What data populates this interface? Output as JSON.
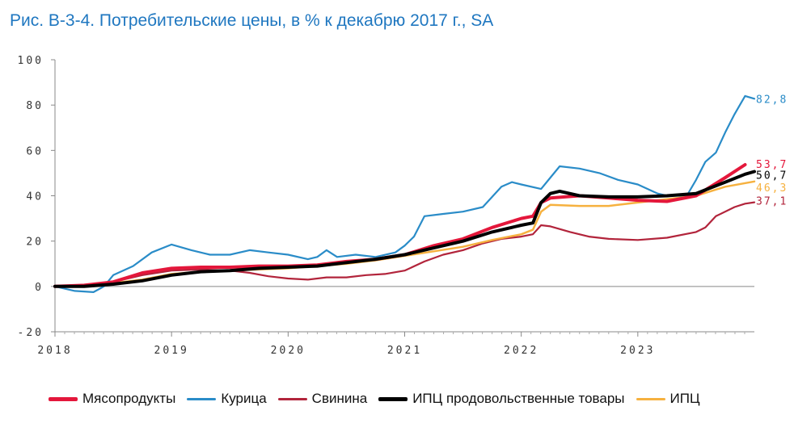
{
  "title": "Рис. В-3-4. Потребительские цены, в % к декабрю 2017 г., SA",
  "chart_data": {
    "type": "line",
    "title": "Рис. В-3-4. Потребительские цены, в % к декабрю 2017 г., SA",
    "xlabel": "",
    "ylabel": "",
    "xlim": [
      2018.0,
      2024.0
    ],
    "ylim": [
      -20,
      100
    ],
    "y_ticks": [
      100,
      80,
      60,
      40,
      20,
      0,
      -20
    ],
    "x_ticks": [
      2018,
      2019,
      2020,
      2021,
      2022,
      2023
    ],
    "x_tick_labels": [
      "2018",
      "2019",
      "2020",
      "2021",
      "2022",
      "2023"
    ],
    "grid": false,
    "legend_position": "bottom",
    "series": [
      {
        "name": "Мясопродукты",
        "color": "#e4173b",
        "end_label": "53,7",
        "points": [
          [
            2018.0,
            0
          ],
          [
            2018.25,
            0.5
          ],
          [
            2018.5,
            2
          ],
          [
            2018.75,
            6
          ],
          [
            2019.0,
            8
          ],
          [
            2019.25,
            8.5
          ],
          [
            2019.5,
            8.5
          ],
          [
            2019.75,
            9
          ],
          [
            2020.0,
            9
          ],
          [
            2020.25,
            9.5
          ],
          [
            2020.5,
            11
          ],
          [
            2020.75,
            12
          ],
          [
            2021.0,
            14
          ],
          [
            2021.25,
            18
          ],
          [
            2021.5,
            21
          ],
          [
            2021.75,
            26
          ],
          [
            2022.0,
            30
          ],
          [
            2022.1,
            31
          ],
          [
            2022.17,
            37
          ],
          [
            2022.25,
            39
          ],
          [
            2022.5,
            40
          ],
          [
            2022.75,
            39
          ],
          [
            2023.0,
            38
          ],
          [
            2023.25,
            37.5
          ],
          [
            2023.5,
            40
          ],
          [
            2023.75,
            48
          ],
          [
            2023.92,
            53.7
          ]
        ]
      },
      {
        "name": "Курица",
        "color": "#2a8cc8",
        "end_label": "82,8",
        "points": [
          [
            2018.0,
            0
          ],
          [
            2018.17,
            -2
          ],
          [
            2018.33,
            -2.5
          ],
          [
            2018.42,
            0
          ],
          [
            2018.5,
            5
          ],
          [
            2018.67,
            9
          ],
          [
            2018.83,
            15
          ],
          [
            2019.0,
            18.5
          ],
          [
            2019.17,
            16
          ],
          [
            2019.33,
            14
          ],
          [
            2019.5,
            14
          ],
          [
            2019.67,
            16
          ],
          [
            2019.83,
            15
          ],
          [
            2020.0,
            14
          ],
          [
            2020.17,
            12
          ],
          [
            2020.25,
            13
          ],
          [
            2020.33,
            16
          ],
          [
            2020.42,
            13
          ],
          [
            2020.58,
            14
          ],
          [
            2020.75,
            13
          ],
          [
            2020.92,
            15
          ],
          [
            2021.0,
            18
          ],
          [
            2021.08,
            22
          ],
          [
            2021.17,
            31
          ],
          [
            2021.33,
            32
          ],
          [
            2021.5,
            33
          ],
          [
            2021.67,
            35
          ],
          [
            2021.83,
            44
          ],
          [
            2021.92,
            46
          ],
          [
            2022.0,
            45
          ],
          [
            2022.17,
            43
          ],
          [
            2022.25,
            48
          ],
          [
            2022.33,
            53
          ],
          [
            2022.5,
            52
          ],
          [
            2022.67,
            50
          ],
          [
            2022.83,
            47
          ],
          [
            2023.0,
            45
          ],
          [
            2023.17,
            41
          ],
          [
            2023.25,
            40
          ],
          [
            2023.42,
            40
          ],
          [
            2023.5,
            47
          ],
          [
            2023.58,
            55
          ],
          [
            2023.67,
            59
          ],
          [
            2023.75,
            68
          ],
          [
            2023.83,
            76
          ],
          [
            2023.92,
            84
          ],
          [
            2024.0,
            82.8
          ]
        ]
      },
      {
        "name": "Свинина",
        "color": "#b2243b",
        "end_label": "37,1",
        "points": [
          [
            2018.0,
            0
          ],
          [
            2018.25,
            0
          ],
          [
            2018.5,
            2
          ],
          [
            2018.75,
            5
          ],
          [
            2019.0,
            7
          ],
          [
            2019.25,
            7.5
          ],
          [
            2019.5,
            7
          ],
          [
            2019.67,
            6
          ],
          [
            2019.83,
            4.5
          ],
          [
            2020.0,
            3.5
          ],
          [
            2020.17,
            3
          ],
          [
            2020.33,
            4
          ],
          [
            2020.5,
            4
          ],
          [
            2020.67,
            5
          ],
          [
            2020.83,
            5.5
          ],
          [
            2021.0,
            7
          ],
          [
            2021.17,
            11
          ],
          [
            2021.33,
            14
          ],
          [
            2021.5,
            16
          ],
          [
            2021.67,
            19
          ],
          [
            2021.83,
            21
          ],
          [
            2022.0,
            22
          ],
          [
            2022.1,
            23
          ],
          [
            2022.17,
            27
          ],
          [
            2022.25,
            26.5
          ],
          [
            2022.42,
            24
          ],
          [
            2022.58,
            22
          ],
          [
            2022.75,
            21
          ],
          [
            2023.0,
            20.5
          ],
          [
            2023.25,
            21.5
          ],
          [
            2023.5,
            24
          ],
          [
            2023.58,
            26
          ],
          [
            2023.67,
            31
          ],
          [
            2023.83,
            35
          ],
          [
            2023.92,
            36.5
          ],
          [
            2024.0,
            37.1
          ]
        ]
      },
      {
        "name": "ИПЦ продовольственные товары",
        "color": "#000000",
        "end_label": "50,7",
        "points": [
          [
            2018.0,
            0
          ],
          [
            2018.25,
            0
          ],
          [
            2018.5,
            1
          ],
          [
            2018.75,
            2.5
          ],
          [
            2019.0,
            5
          ],
          [
            2019.25,
            6.5
          ],
          [
            2019.5,
            7
          ],
          [
            2019.75,
            8
          ],
          [
            2020.0,
            8.5
          ],
          [
            2020.25,
            9
          ],
          [
            2020.5,
            10.5
          ],
          [
            2020.75,
            12
          ],
          [
            2021.0,
            14
          ],
          [
            2021.25,
            17
          ],
          [
            2021.5,
            20
          ],
          [
            2021.75,
            24
          ],
          [
            2022.0,
            27
          ],
          [
            2022.1,
            28
          ],
          [
            2022.17,
            37
          ],
          [
            2022.25,
            41
          ],
          [
            2022.33,
            42
          ],
          [
            2022.5,
            40
          ],
          [
            2022.75,
            39.5
          ],
          [
            2023.0,
            39.5
          ],
          [
            2023.25,
            40
          ],
          [
            2023.5,
            41
          ],
          [
            2023.75,
            46
          ],
          [
            2023.92,
            49.5
          ],
          [
            2024.0,
            50.7
          ]
        ]
      },
      {
        "name": "ИПЦ",
        "color": "#f6b13f",
        "end_label": "46,3",
        "points": [
          [
            2018.0,
            0
          ],
          [
            2018.25,
            0.5
          ],
          [
            2018.5,
            1.5
          ],
          [
            2018.75,
            3
          ],
          [
            2019.0,
            5.5
          ],
          [
            2019.25,
            6.5
          ],
          [
            2019.5,
            7
          ],
          [
            2019.75,
            7.5
          ],
          [
            2020.0,
            8
          ],
          [
            2020.25,
            9
          ],
          [
            2020.5,
            10
          ],
          [
            2020.75,
            11.5
          ],
          [
            2021.0,
            13.5
          ],
          [
            2021.25,
            15.5
          ],
          [
            2021.5,
            17.5
          ],
          [
            2021.75,
            20.5
          ],
          [
            2022.0,
            23
          ],
          [
            2022.1,
            25
          ],
          [
            2022.17,
            33
          ],
          [
            2022.25,
            36
          ],
          [
            2022.5,
            35.5
          ],
          [
            2022.75,
            35.5
          ],
          [
            2023.0,
            37
          ],
          [
            2023.25,
            38.5
          ],
          [
            2023.5,
            40
          ],
          [
            2023.75,
            44
          ],
          [
            2024.0,
            46.3
          ]
        ]
      }
    ]
  }
}
